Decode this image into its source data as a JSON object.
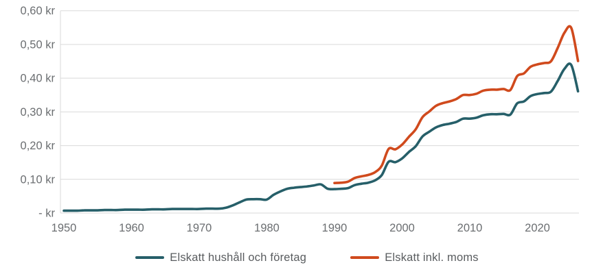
{
  "chart_data": {
    "type": "line",
    "title": "",
    "currency_unit": "kr",
    "y_axis": {
      "max": 0.6,
      "min": 0,
      "ticks": [
        {
          "value": 0.6,
          "label": "0,60 kr"
        },
        {
          "value": 0.5,
          "label": "0,50 kr"
        },
        {
          "value": 0.4,
          "label": "0,40 kr"
        },
        {
          "value": 0.3,
          "label": "0,30 kr"
        },
        {
          "value": 0.2,
          "label": "0,20 kr"
        },
        {
          "value": 0.1,
          "label": "0,10 kr"
        },
        {
          "value": 0.0,
          "label": "-  kr"
        }
      ]
    },
    "x_axis": {
      "ticks": [
        1950,
        1960,
        1970,
        1980,
        1990,
        2000,
        2010,
        2020
      ],
      "range": [
        1950,
        2026
      ]
    },
    "grid": true,
    "legend_position": "bottom",
    "colors": {
      "grid": "#d9d9d9",
      "axis_text": "#6b6e71",
      "legend_text": "#595c5f"
    },
    "series": [
      {
        "name": "Elskatt hushåll och företag",
        "color": "#265f69",
        "start_year": 1950,
        "values": [
          0.007,
          0.007,
          0.007,
          0.008,
          0.008,
          0.008,
          0.009,
          0.009,
          0.009,
          0.01,
          0.01,
          0.01,
          0.01,
          0.011,
          0.011,
          0.011,
          0.012,
          0.012,
          0.012,
          0.012,
          0.012,
          0.013,
          0.013,
          0.013,
          0.016,
          0.023,
          0.032,
          0.04,
          0.041,
          0.041,
          0.04,
          0.054,
          0.064,
          0.072,
          0.075,
          0.077,
          0.079,
          0.082,
          0.085,
          0.072,
          0.071,
          0.072,
          0.074,
          0.083,
          0.087,
          0.09,
          0.097,
          0.113,
          0.152,
          0.151,
          0.162,
          0.181,
          0.198,
          0.227,
          0.241,
          0.254,
          0.261,
          0.265,
          0.27,
          0.28,
          0.28,
          0.283,
          0.29,
          0.293,
          0.293,
          0.294,
          0.292,
          0.325,
          0.331,
          0.347,
          0.353,
          0.356,
          0.36,
          0.392,
          0.428,
          0.439,
          0.361
        ]
      },
      {
        "name": "Elskatt inkl. moms",
        "color": "#d04a1d",
        "start_year": 1990,
        "values": [
          0.089,
          0.09,
          0.093,
          0.104,
          0.109,
          0.113,
          0.121,
          0.141,
          0.19,
          0.189,
          0.203,
          0.226,
          0.248,
          0.284,
          0.301,
          0.318,
          0.326,
          0.331,
          0.338,
          0.35,
          0.35,
          0.354,
          0.363,
          0.366,
          0.366,
          0.368,
          0.365,
          0.406,
          0.414,
          0.434,
          0.441,
          0.445,
          0.45,
          0.49,
          0.535,
          0.549,
          0.451
        ]
      }
    ]
  },
  "legend": {
    "items": [
      {
        "label": "Elskatt hushåll och företag"
      },
      {
        "label": "Elskatt inkl. moms"
      }
    ]
  }
}
